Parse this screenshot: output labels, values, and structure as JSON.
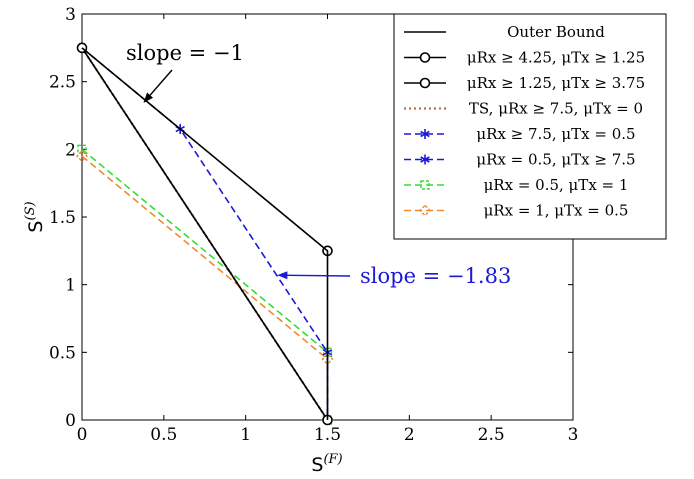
{
  "chart_data": {
    "type": "line",
    "xlabel": "S^(F)",
    "ylabel": "S^(S)",
    "xlim": [
      0,
      3
    ],
    "ylim": [
      0,
      3
    ],
    "xticks": [
      "0",
      "0.5",
      "1",
      "1.5",
      "2",
      "2.5",
      "3"
    ],
    "yticks": [
      "0",
      "0.5",
      "1",
      "1.5",
      "2",
      "2.5",
      "3"
    ],
    "grid": false,
    "legend_position": "top-right",
    "series": [
      {
        "name": "Outer Bound",
        "color": "#000000",
        "dash": "solid",
        "marker": "none",
        "in_legend": true,
        "x": [
          0,
          1.5,
          1.5
        ],
        "y": [
          2.75,
          1.25,
          0
        ]
      },
      {
        "name": "μRx ≥ 4.25, μTx ≥ 1.25",
        "color": "#000000",
        "dash": "solid",
        "marker": "circle",
        "in_legend": true,
        "x": [
          0,
          1.5
        ],
        "y": [
          2.75,
          0
        ]
      },
      {
        "name": "μRx ≥ 1.25, μTx ≥ 3.75",
        "color": "#000000",
        "dash": "solid",
        "marker": "circle",
        "in_legend": true,
        "x": [
          1.5
        ],
        "y": [
          1.25
        ]
      },
      {
        "name": "TS, μRx ≥ 7.5, μTx = 0",
        "color": "#c0703a",
        "dash": "dotted",
        "marker": "none",
        "in_legend": true,
        "x": [
          0,
          1.5
        ],
        "y": [
          2.75,
          0
        ]
      },
      {
        "name": "μRx ≥ 7.5, μTx = 0.5",
        "color": "#1a1ad6",
        "dash": "dashed",
        "marker": "star",
        "in_legend": true,
        "x": [
          0,
          0.6,
          1.5,
          1.5
        ],
        "y": [
          2.75,
          2.15,
          0.5,
          0
        ]
      },
      {
        "name": "μRx = 0.5, μTx ≥ 7.5",
        "color": "#1a1ad6",
        "dash": "dashed",
        "marker": "star",
        "in_legend": true,
        "x": [
          0,
          1.5
        ],
        "y": [
          2.75,
          0
        ]
      },
      {
        "name": "μRx = 0.5, μTx = 1",
        "color": "#33dd33",
        "dash": "dashed",
        "marker": "square",
        "in_legend": true,
        "x": [
          0,
          1.5,
          1.5
        ],
        "y": [
          2,
          0.5,
          0
        ]
      },
      {
        "name": "μRx = 1, μTx = 0.5",
        "color": "#f08a30",
        "dash": "dashed",
        "marker": "diamond",
        "in_legend": true,
        "x": [
          0,
          1.5,
          1.5
        ],
        "y": [
          1.95,
          0.45,
          0
        ]
      }
    ],
    "annotations": [
      {
        "text": "slope = −1",
        "color": "#000000",
        "arrow_to": [
          0.38,
          2.35
        ]
      },
      {
        "text": "slope = −1.83",
        "color": "#1a1ad6",
        "arrow_to": [
          1.2,
          1.07
        ]
      }
    ]
  }
}
